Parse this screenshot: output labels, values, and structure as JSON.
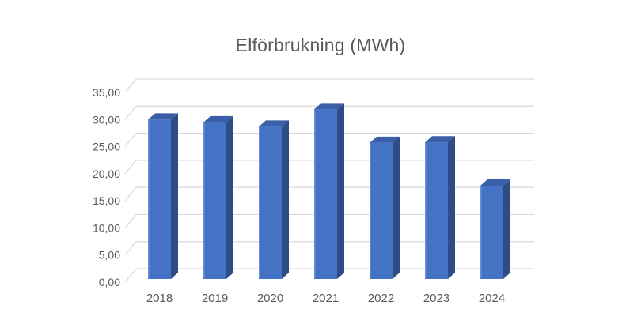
{
  "title": "Elförbrukning (MWh)",
  "chart_data": {
    "type": "bar",
    "variant": "3d-column",
    "title": "Elförbrukning (MWh)",
    "categories": [
      "2018",
      "2019",
      "2020",
      "2021",
      "2022",
      "2023",
      "2024"
    ],
    "values": [
      29.4,
      28.9,
      28.1,
      31.3,
      25.1,
      25.2,
      17.2
    ],
    "xlabel": "",
    "ylabel": "",
    "ylim": [
      0,
      35
    ],
    "ytick_step": 5,
    "ytick_labels_top_to_bottom": [
      "35,00",
      "30,00",
      "25,00",
      "20,00",
      "15,00",
      "10,00",
      "5,00",
      "0,00"
    ],
    "grid": true,
    "legend": false,
    "colors": {
      "bar_front": "#4472C4",
      "bar_top": "#3A5FA8",
      "bar_side": "#2E4D85",
      "bar_edge_highlight": "#7499D9",
      "gridline": "#D9D9D9",
      "text": "#595959",
      "background": "#FFFFFF"
    }
  }
}
